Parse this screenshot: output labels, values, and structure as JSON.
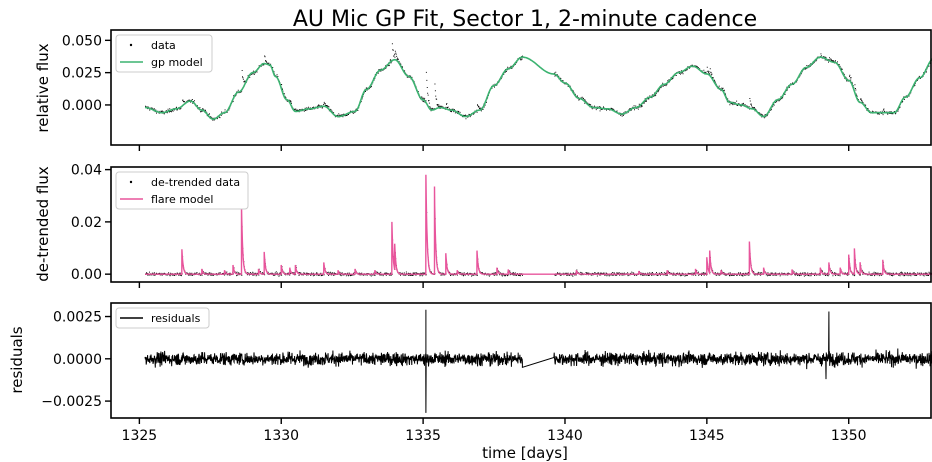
{
  "colors": {
    "data": "#000000",
    "gp_model": "#3cb371",
    "flare_model": "#e8559c",
    "residuals": "#000000"
  },
  "chart_data": {
    "type": "line",
    "title": "AU Mic GP Fit, Sector 1, 2-minute cadence",
    "xlabel": "time [days]",
    "xlim": [
      1324.0,
      1352.9
    ],
    "xticks": [
      1325,
      1330,
      1335,
      1340,
      1345,
      1350
    ],
    "xtick_labels": [
      "1325",
      "1330",
      "1335",
      "1340",
      "1345",
      "1350"
    ],
    "gap": [
      1338.5,
      1339.6
    ],
    "panels": [
      {
        "id": "top",
        "ylabel": "relative flux",
        "ylim": [
          -0.031,
          0.058
        ],
        "yticks": [
          0.05,
          0.025,
          0.0
        ],
        "ytick_labels": [
          "0.050",
          "0.025",
          "0.000"
        ],
        "legend": {
          "position": "upper-left",
          "entries": [
            "data",
            "gp model"
          ]
        },
        "gp_model": {
          "x": [
            1325.2,
            1325.8,
            1326.3,
            1326.8,
            1327.2,
            1327.6,
            1328.0,
            1328.5,
            1329.0,
            1329.4,
            1329.6,
            1329.8,
            1330.2,
            1330.5,
            1331.0,
            1331.5,
            1332.0,
            1332.6,
            1333.0,
            1333.5,
            1334.0,
            1334.5,
            1335.0,
            1335.3,
            1335.6,
            1336.0,
            1336.5,
            1337.0,
            1337.5,
            1338.0,
            1338.5,
            1339.6,
            1340.0,
            1340.5,
            1341.0,
            1341.5,
            1342.0,
            1342.5,
            1343.0,
            1343.5,
            1344.0,
            1344.5,
            1345.0,
            1345.5,
            1345.8,
            1346.2,
            1346.6,
            1347.0,
            1347.5,
            1348.0,
            1348.5,
            1349.0,
            1349.5,
            1350.0,
            1350.4,
            1350.8,
            1351.2,
            1351.6,
            1352.0,
            1352.5,
            1353.0
          ],
          "y": [
            -0.002,
            -0.006,
            -0.003,
            0.003,
            -0.004,
            -0.011,
            -0.006,
            0.01,
            0.025,
            0.032,
            0.031,
            0.022,
            0.004,
            -0.005,
            -0.003,
            -0.001,
            -0.009,
            -0.005,
            0.012,
            0.027,
            0.035,
            0.022,
            0.004,
            -0.004,
            -0.002,
            -0.004,
            -0.009,
            -0.004,
            0.015,
            0.028,
            0.037,
            0.024,
            0.017,
            0.005,
            -0.002,
            -0.003,
            -0.007,
            -0.002,
            0.006,
            0.016,
            0.025,
            0.03,
            0.024,
            0.012,
            0.002,
            0.0,
            -0.003,
            -0.009,
            0.004,
            0.016,
            0.029,
            0.037,
            0.033,
            0.019,
            0.002,
            -0.006,
            -0.006,
            -0.006,
            0.006,
            0.021,
            0.036
          ]
        }
      },
      {
        "id": "middle",
        "ylabel": "de-trended flux",
        "ylim": [
          -0.003,
          0.041
        ],
        "yticks": [
          0.04,
          0.02,
          0.0
        ],
        "ytick_labels": [
          "0.04",
          "0.02",
          "0.00"
        ],
        "legend": {
          "position": "upper-left",
          "entries": [
            "de-trended data",
            "flare model"
          ]
        },
        "flares": {
          "t": [
            1326.5,
            1327.2,
            1328.0,
            1328.3,
            1328.6,
            1329.2,
            1329.4,
            1330.0,
            1330.3,
            1330.5,
            1331.5,
            1332.0,
            1332.6,
            1333.3,
            1333.9,
            1334.0,
            1335.1,
            1335.4,
            1335.8,
            1336.2,
            1336.9,
            1337.6,
            1338.0,
            1340.4,
            1342.6,
            1343.6,
            1344.6,
            1345.0,
            1345.1,
            1345.5,
            1346.5,
            1347.0,
            1348.0,
            1349.0,
            1349.3,
            1349.7,
            1350.0,
            1350.2,
            1350.4,
            1351.2
          ],
          "amp": [
            0.0095,
            0.002,
            0.0015,
            0.0035,
            0.0262,
            0.002,
            0.0085,
            0.0035,
            0.0025,
            0.0035,
            0.0045,
            0.0015,
            0.002,
            0.0015,
            0.02,
            0.01,
            0.038,
            0.0335,
            0.008,
            0.0015,
            0.009,
            0.0025,
            0.0018,
            0.0015,
            0.0012,
            0.0015,
            0.002,
            0.0065,
            0.0085,
            0.0015,
            0.0125,
            0.0025,
            0.0018,
            0.0025,
            0.0045,
            0.0025,
            0.0075,
            0.0098,
            0.0045,
            0.0055
          ]
        }
      },
      {
        "id": "bottom",
        "ylabel": "residuals",
        "ylim": [
          -0.0035,
          0.0033
        ],
        "yticks": [
          0.0025,
          0.0,
          -0.0025
        ],
        "ytick_labels": [
          "0.0025",
          "0.0000",
          "−0.0025"
        ],
        "legend": {
          "position": "upper-left",
          "entries": [
            "residuals"
          ]
        },
        "noise_std": 0.0003,
        "spikes": [
          [
            1335.1,
            0.0029
          ],
          [
            1335.1,
            -0.0032
          ],
          [
            1349.3,
            0.0028
          ],
          [
            1349.2,
            -0.0012
          ]
        ]
      }
    ]
  }
}
